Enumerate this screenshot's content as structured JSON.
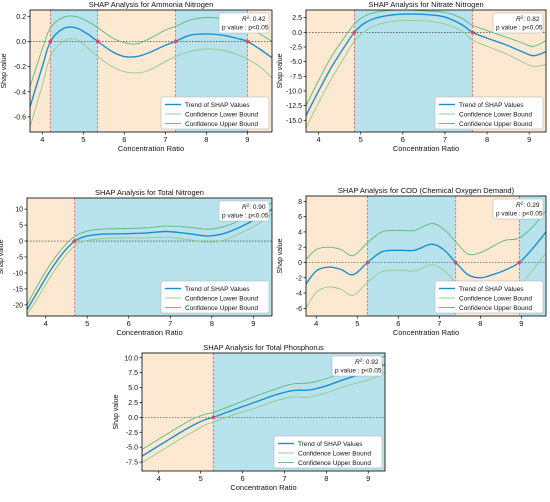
{
  "colors": {
    "orange_band": "#fde8d2",
    "blue_band": "#b9e3ec",
    "trend": "#1a8fd0",
    "lower": "#8fcb8a",
    "upper": "#59b97e",
    "redline": "#e0495f",
    "axis": "#000000"
  },
  "chart_data": [
    {
      "id": "ammonia",
      "type": "line",
      "title": "SHAP Analysis for Ammonia Nitrogen",
      "xlabel": "Concentration Ratio",
      "ylabel": "Shap value",
      "xlim": [
        3.7,
        9.6
      ],
      "ylim": [
        -0.72,
        0.25
      ],
      "xticks": [
        "4",
        "5",
        "6",
        "7",
        "8",
        "9"
      ],
      "xtick_values": [
        4,
        5,
        6,
        7,
        8,
        9
      ],
      "yticks": [
        "0.2",
        "0.0",
        "-0.2",
        "-0.4",
        "-0.6"
      ],
      "ytick_values": [
        0.2,
        0.0,
        -0.2,
        -0.4,
        -0.6
      ],
      "r2": "0.42",
      "pvalue": "p value : p<0.05",
      "legend": [
        "Trend of SHAP Values",
        "Confidence Lower Bound",
        "Confidence Upper Bound"
      ],
      "regions": [
        [
          3.7,
          4.2,
          "orange"
        ],
        [
          4.2,
          5.35,
          "blue"
        ],
        [
          5.35,
          7.25,
          "orange"
        ],
        [
          7.25,
          9.0,
          "blue"
        ],
        [
          9.0,
          9.6,
          "orange"
        ]
      ],
      "zero_crossings": [
        4.2,
        5.35,
        7.25,
        9.0
      ],
      "x": [
        3.7,
        4.0,
        4.2,
        4.5,
        4.8,
        5.1,
        5.35,
        5.7,
        6.0,
        6.3,
        6.6,
        7.0,
        7.25,
        7.6,
        8.0,
        8.4,
        8.8,
        9.0,
        9.3,
        9.6
      ],
      "series": [
        {
          "name": "Trend of SHAP Values",
          "values": [
            -0.52,
            -0.2,
            0.0,
            0.1,
            0.11,
            0.06,
            0.0,
            -0.08,
            -0.12,
            -0.12,
            -0.09,
            -0.03,
            0.0,
            0.05,
            0.06,
            0.05,
            0.02,
            0.0,
            -0.06,
            -0.13
          ]
        },
        {
          "name": "Confidence Lower Bound",
          "values": [
            -0.68,
            -0.35,
            -0.12,
            0.0,
            0.02,
            -0.05,
            -0.12,
            -0.2,
            -0.24,
            -0.25,
            -0.23,
            -0.16,
            -0.12,
            -0.08,
            -0.06,
            -0.07,
            -0.11,
            -0.14,
            -0.2,
            -0.29
          ]
        },
        {
          "name": "Confidence Upper Bound",
          "values": [
            -0.36,
            -0.06,
            0.11,
            0.19,
            0.2,
            0.16,
            0.11,
            0.03,
            -0.01,
            -0.02,
            0.02,
            0.09,
            0.12,
            0.17,
            0.19,
            0.18,
            0.14,
            0.11,
            0.06,
            0.0
          ]
        }
      ]
    },
    {
      "id": "nitrate",
      "type": "line",
      "title": "SHAP Analysis for Nitrate Nitrogen",
      "xlabel": "Concentration Ratio",
      "ylabel": "Shap value",
      "xlim": [
        3.7,
        9.4
      ],
      "ylim": [
        -17.0,
        3.8
      ],
      "xticks": [
        "4",
        "5",
        "6",
        "7",
        "8",
        "9"
      ],
      "xtick_values": [
        4,
        5,
        6,
        7,
        8,
        9
      ],
      "yticks": [
        "2.5",
        "0.0",
        "-2.5",
        "-5.0",
        "-7.5",
        "-10.0",
        "-12.5",
        "-15.0"
      ],
      "ytick_values": [
        2.5,
        0.0,
        -2.5,
        -5.0,
        -7.5,
        -10.0,
        -12.5,
        -15.0
      ],
      "r2": "0.82",
      "pvalue": "p value : p<0.05",
      "legend": [
        "Trend of SHAP Values",
        "Confidence Lower Bound",
        "Confidence Upper Bound"
      ],
      "regions": [
        [
          3.7,
          4.85,
          "orange"
        ],
        [
          4.85,
          7.65,
          "blue"
        ],
        [
          7.65,
          9.4,
          "orange"
        ]
      ],
      "zero_crossings": [
        4.85,
        7.65
      ],
      "x": [
        3.7,
        4.0,
        4.3,
        4.6,
        4.85,
        5.1,
        5.4,
        5.8,
        6.2,
        6.6,
        7.0,
        7.4,
        7.65,
        8.0,
        8.4,
        8.8,
        9.1,
        9.4
      ],
      "series": [
        {
          "name": "Trend of SHAP Values",
          "values": [
            -14.2,
            -10.0,
            -6.0,
            -2.6,
            0.0,
            1.6,
            2.5,
            3.0,
            3.1,
            3.0,
            2.6,
            1.3,
            0.0,
            -1.0,
            -2.0,
            -3.2,
            -4.0,
            -3.3
          ]
        },
        {
          "name": "Confidence Lower Bound",
          "values": [
            -16.3,
            -12.0,
            -8.0,
            -4.4,
            -1.5,
            0.2,
            1.3,
            1.9,
            2.0,
            1.9,
            1.4,
            0.2,
            -1.3,
            -2.4,
            -3.5,
            -4.9,
            -5.8,
            -5.5
          ]
        },
        {
          "name": "Confidence Upper Bound",
          "values": [
            -12.5,
            -8.2,
            -4.2,
            -1.0,
            1.4,
            2.8,
            3.5,
            3.8,
            3.8,
            3.6,
            3.4,
            2.4,
            1.2,
            0.3,
            -0.7,
            -1.7,
            -2.4,
            -1.4
          ]
        }
      ]
    },
    {
      "id": "totaln",
      "type": "line",
      "title": "SHAP Analysis for Total Nitrogen",
      "xlabel": "Concentration Ratio",
      "ylabel": "Shap value",
      "xlim": [
        3.55,
        9.45
      ],
      "ylim": [
        -23.5,
        13.5
      ],
      "xticks": [
        "4",
        "5",
        "6",
        "7",
        "8",
        "9"
      ],
      "xtick_values": [
        4,
        5,
        6,
        7,
        8,
        9
      ],
      "yticks": [
        "10",
        "5",
        "0",
        "-5",
        "-10",
        "-15",
        "-20"
      ],
      "ytick_values": [
        10,
        5,
        0,
        -5,
        -10,
        -15,
        -20
      ],
      "r2": "0.90",
      "pvalue": "p value : p<0.05",
      "legend": [
        "Trend of SHAP Values",
        "Confidence Lower Bound",
        "Confidence Upper Bound"
      ],
      "regions": [
        [
          3.55,
          4.7,
          "orange"
        ],
        [
          4.7,
          9.45,
          "blue"
        ]
      ],
      "zero_crossings": [
        4.7
      ],
      "x": [
        3.55,
        3.8,
        4.1,
        4.4,
        4.7,
        5.0,
        5.4,
        5.9,
        6.4,
        6.9,
        7.4,
        7.9,
        8.3,
        8.7,
        9.1,
        9.45
      ],
      "series": [
        {
          "name": "Trend of SHAP Values",
          "values": [
            -21.5,
            -16.0,
            -9.5,
            -4.0,
            0.0,
            1.6,
            2.2,
            2.3,
            2.5,
            3.0,
            2.4,
            1.6,
            2.4,
            4.5,
            7.2,
            10.0
          ]
        },
        {
          "name": "Confidence Lower Bound",
          "values": [
            -23.0,
            -18.0,
            -11.5,
            -5.8,
            -1.5,
            0.2,
            0.8,
            1.0,
            1.0,
            1.2,
            0.5,
            -0.4,
            0.3,
            2.5,
            5.2,
            8.5
          ]
        },
        {
          "name": "Confidence Upper Bound",
          "values": [
            -20.0,
            -14.0,
            -7.5,
            -2.3,
            1.5,
            3.1,
            3.8,
            3.9,
            4.1,
            4.7,
            4.4,
            3.7,
            4.6,
            6.6,
            9.3,
            12.0
          ]
        }
      ]
    },
    {
      "id": "cod",
      "type": "line",
      "title": "SHAP Analysis for COD (Chemical Oxygen Demand)",
      "xlabel": "Concentration Ratio",
      "ylabel": "Shap value",
      "xlim": [
        3.75,
        9.6
      ],
      "ylim": [
        -7.0,
        8.7
      ],
      "xticks": [
        "4",
        "5",
        "6",
        "7",
        "8",
        "9"
      ],
      "xtick_values": [
        4,
        5,
        6,
        7,
        8,
        9
      ],
      "yticks": [
        "8",
        "6",
        "4",
        "2",
        "0",
        "-2",
        "-4",
        "-6"
      ],
      "ytick_values": [
        8,
        6,
        4,
        2,
        0,
        -2,
        -4,
        -6
      ],
      "r2": "0.29",
      "pvalue": "p value : p<0.05",
      "legend": [
        "Trend of SHAP Values",
        "Confidence Lower Bound",
        "Confidence Upper Bound"
      ],
      "regions": [
        [
          3.75,
          5.25,
          "orange"
        ],
        [
          5.25,
          7.4,
          "blue"
        ],
        [
          7.4,
          8.95,
          "orange"
        ],
        [
          8.95,
          9.6,
          "blue"
        ]
      ],
      "zero_crossings": [
        5.25,
        7.4,
        8.95
      ],
      "x": [
        3.75,
        4.0,
        4.3,
        4.6,
        4.9,
        5.25,
        5.6,
        6.0,
        6.4,
        6.8,
        7.1,
        7.4,
        7.7,
        8.0,
        8.3,
        8.6,
        8.95,
        9.3,
        9.6
      ],
      "series": [
        {
          "name": "Trend of SHAP Values",
          "values": [
            -2.8,
            -1.1,
            -0.6,
            -0.9,
            -1.6,
            0.0,
            1.4,
            1.6,
            1.6,
            2.4,
            1.7,
            0.0,
            -1.6,
            -2.0,
            -1.6,
            -1.0,
            0.0,
            2.0,
            4.0
          ]
        },
        {
          "name": "Confidence Lower Bound",
          "values": [
            -6.0,
            -3.9,
            -3.2,
            -3.5,
            -4.3,
            -2.6,
            -1.2,
            -1.0,
            -1.1,
            -0.3,
            -1.0,
            -2.7,
            -4.3,
            -5.3,
            -5.3,
            -4.9,
            -3.2,
            -0.8,
            1.2
          ]
        },
        {
          "name": "Confidence Upper Bound",
          "values": [
            0.4,
            1.7,
            2.0,
            1.7,
            0.9,
            2.6,
            4.0,
            4.2,
            4.2,
            5.1,
            4.4,
            2.7,
            1.1,
            1.3,
            2.1,
            2.9,
            3.2,
            4.8,
            6.8
          ]
        }
      ]
    },
    {
      "id": "totalp",
      "type": "line",
      "title": "SHAP Analysis for Total Phosphorus",
      "xlabel": "Concentration Ratio",
      "ylabel": "Shap value",
      "xlim": [
        3.6,
        9.4
      ],
      "ylim": [
        -9.0,
        10.8
      ],
      "xticks": [
        "4",
        "5",
        "6",
        "7",
        "8",
        "9"
      ],
      "xtick_values": [
        4,
        5,
        6,
        7,
        8,
        9
      ],
      "yticks": [
        "10.0",
        "7.5",
        "5.0",
        "2.5",
        "0.0",
        "-2.5",
        "-5.0",
        "-7.5"
      ],
      "ytick_values": [
        10.0,
        7.5,
        5.0,
        2.5,
        0.0,
        -2.5,
        -5.0,
        -7.5
      ],
      "r2": "0.92",
      "pvalue": "p value : p<0.05",
      "legend": [
        "Trend of SHAP Values",
        "Confidence Lower Bound",
        "Confidence Upper Bound"
      ],
      "regions": [
        [
          3.6,
          5.3,
          "orange"
        ],
        [
          5.3,
          9.4,
          "blue"
        ]
      ],
      "zero_crossings": [
        5.3
      ],
      "x": [
        3.6,
        3.9,
        4.2,
        4.5,
        4.8,
        5.1,
        5.3,
        5.6,
        6.0,
        6.4,
        6.8,
        7.2,
        7.6,
        8.0,
        8.4,
        8.8,
        9.1,
        9.4
      ],
      "series": [
        {
          "name": "Trend of SHAP Values",
          "values": [
            -6.5,
            -5.2,
            -3.9,
            -2.6,
            -1.4,
            -0.4,
            0.0,
            0.8,
            1.8,
            2.8,
            3.8,
            4.5,
            4.6,
            5.3,
            6.3,
            7.2,
            7.9,
            8.9
          ]
        },
        {
          "name": "Confidence Lower Bound",
          "values": [
            -7.6,
            -6.3,
            -5.0,
            -3.7,
            -2.5,
            -1.3,
            -0.8,
            0.0,
            0.9,
            1.8,
            2.8,
            3.4,
            3.4,
            4.1,
            5.1,
            5.9,
            6.5,
            7.5
          ]
        },
        {
          "name": "Confidence Upper Bound",
          "values": [
            -5.4,
            -4.1,
            -2.8,
            -1.5,
            -0.3,
            0.5,
            0.8,
            1.6,
            2.7,
            3.8,
            4.8,
            5.6,
            5.8,
            6.5,
            7.5,
            8.5,
            9.3,
            10.3
          ]
        }
      ]
    }
  ]
}
